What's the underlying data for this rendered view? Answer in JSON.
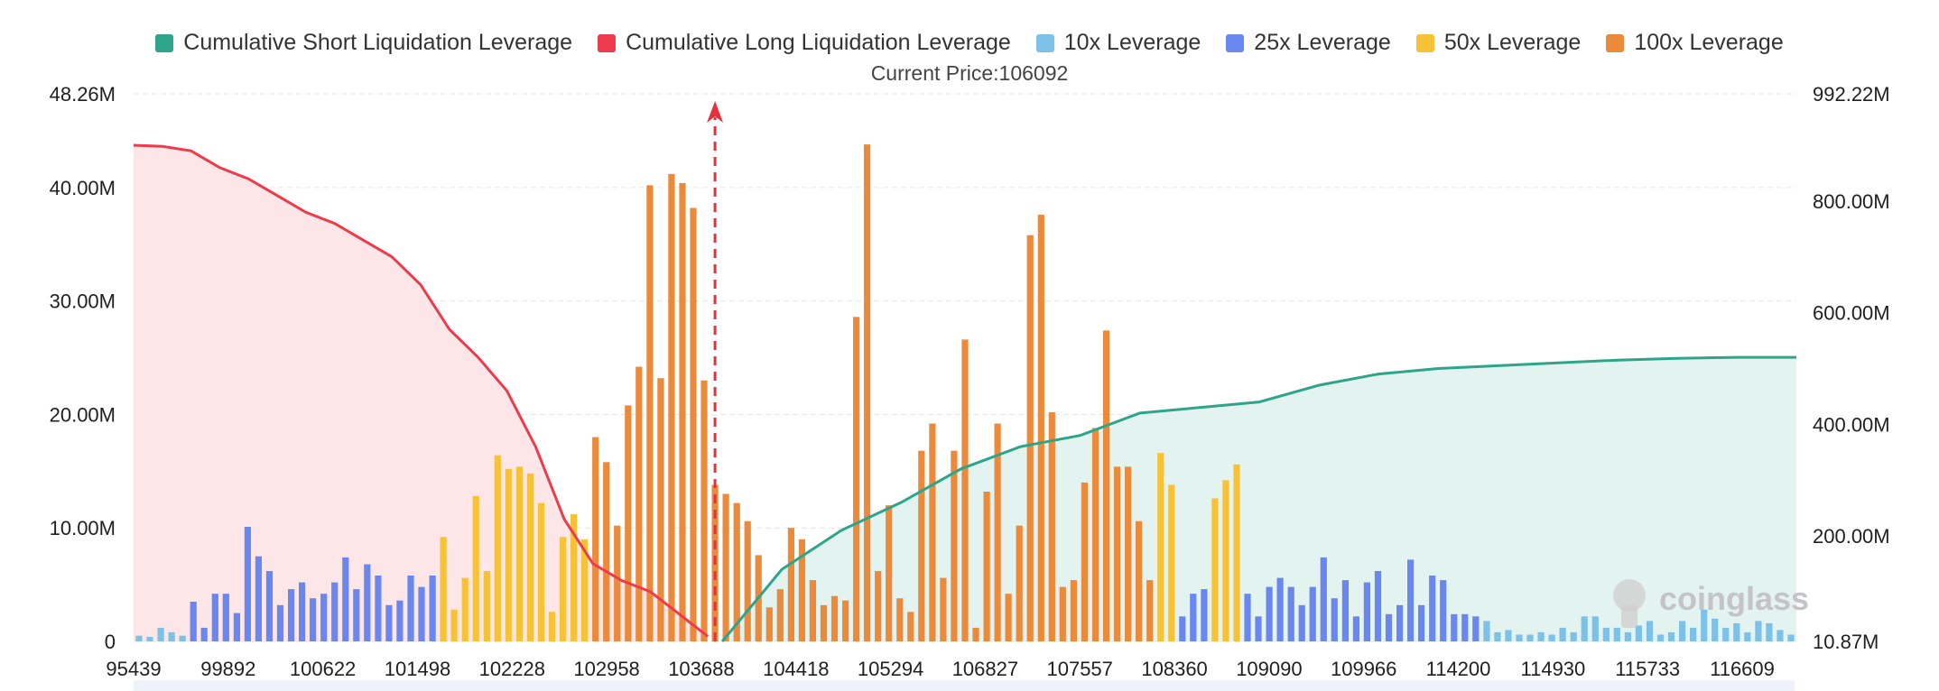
{
  "legend": {
    "items": [
      {
        "label": "Cumulative Short Liquidation Leverage",
        "color": "#2ea58a"
      },
      {
        "label": "Cumulative Long Liquidation Leverage",
        "color": "#ee3b4b"
      },
      {
        "label": "10x Leverage",
        "color": "#7ec1e8"
      },
      {
        "label": "25x Leverage",
        "color": "#6a87f0"
      },
      {
        "label": "50x Leverage",
        "color": "#f7c236"
      },
      {
        "label": "100x Leverage",
        "color": "#ec8a3c"
      }
    ]
  },
  "current_price_label": "Current Price:106092",
  "watermark": "coinglass",
  "colors": {
    "short_line": "#2ea58a",
    "short_fill": "#e3f3ef",
    "long_line": "#ee3b4b",
    "long_fill": "#fde6e8",
    "x10": "#7ec1e8",
    "x25": "#6a87f0",
    "x50": "#f7c236",
    "x100": "#ec8a3c",
    "marker": "#e5313c",
    "grid": "#e6e6e6"
  },
  "chart_data": {
    "type": "bar",
    "x_tick_labels": [
      "95439",
      "99892",
      "100622",
      "101498",
      "102228",
      "102958",
      "103688",
      "104418",
      "105294",
      "106827",
      "107557",
      "108360",
      "109090",
      "109966",
      "114200",
      "114930",
      "115733",
      "116609"
    ],
    "left_axis": {
      "ticks": [
        "0",
        "10.00M",
        "20.00M",
        "30.00M",
        "40.00M",
        "48.26M"
      ],
      "range": [
        0,
        48.26
      ],
      "unit": "M"
    },
    "right_axis": {
      "ticks": [
        "10.87M",
        "200.00M",
        "400.00M",
        "600.00M",
        "800.00M",
        "992.22M"
      ],
      "range": [
        10.87,
        992.22
      ],
      "unit": "M"
    },
    "current_price": 106092,
    "current_price_bar_index": 53,
    "bars": [
      {
        "t": 10,
        "v": 0.5
      },
      {
        "t": 10,
        "v": 0.4
      },
      {
        "t": 10,
        "v": 1.2
      },
      {
        "t": 10,
        "v": 0.8
      },
      {
        "t": 10,
        "v": 0.5
      },
      {
        "t": 25,
        "v": 3.5
      },
      {
        "t": 25,
        "v": 1.2
      },
      {
        "t": 25,
        "v": 4.2
      },
      {
        "t": 25,
        "v": 4.2
      },
      {
        "t": 25,
        "v": 2.5
      },
      {
        "t": 25,
        "v": 10.1
      },
      {
        "t": 25,
        "v": 7.5
      },
      {
        "t": 25,
        "v": 6.2
      },
      {
        "t": 25,
        "v": 3.2
      },
      {
        "t": 25,
        "v": 4.6
      },
      {
        "t": 25,
        "v": 5.2
      },
      {
        "t": 25,
        "v": 3.8
      },
      {
        "t": 25,
        "v": 4.2
      },
      {
        "t": 25,
        "v": 5.2
      },
      {
        "t": 25,
        "v": 7.4
      },
      {
        "t": 25,
        "v": 4.6
      },
      {
        "t": 25,
        "v": 6.8
      },
      {
        "t": 25,
        "v": 5.8
      },
      {
        "t": 25,
        "v": 3.2
      },
      {
        "t": 25,
        "v": 3.6
      },
      {
        "t": 25,
        "v": 5.8
      },
      {
        "t": 25,
        "v": 4.8
      },
      {
        "t": 25,
        "v": 5.8
      },
      {
        "t": 50,
        "v": 9.2
      },
      {
        "t": 50,
        "v": 2.8
      },
      {
        "t": 50,
        "v": 5.6
      },
      {
        "t": 50,
        "v": 12.8
      },
      {
        "t": 50,
        "v": 6.2
      },
      {
        "t": 50,
        "v": 16.4
      },
      {
        "t": 50,
        "v": 15.2
      },
      {
        "t": 50,
        "v": 15.4
      },
      {
        "t": 50,
        "v": 14.8
      },
      {
        "t": 50,
        "v": 12.2
      },
      {
        "t": 50,
        "v": 2.6
      },
      {
        "t": 50,
        "v": 9.2
      },
      {
        "t": 50,
        "v": 11.2
      },
      {
        "t": 50,
        "v": 9.0
      },
      {
        "t": 100,
        "v": 18.0
      },
      {
        "t": 100,
        "v": 15.8
      },
      {
        "t": 100,
        "v": 10.2
      },
      {
        "t": 100,
        "v": 20.8
      },
      {
        "t": 100,
        "v": 24.2
      },
      {
        "t": 100,
        "v": 40.2
      },
      {
        "t": 100,
        "v": 23.2
      },
      {
        "t": 100,
        "v": 41.2
      },
      {
        "t": 100,
        "v": 40.4
      },
      {
        "t": 100,
        "v": 38.2
      },
      {
        "t": 100,
        "v": 23.0
      },
      {
        "t": 100,
        "v": 13.8
      },
      {
        "t": 100,
        "v": 13.0
      },
      {
        "t": 100,
        "v": 12.2
      },
      {
        "t": 100,
        "v": 10.6
      },
      {
        "t": 100,
        "v": 7.6
      },
      {
        "t": 100,
        "v": 3.0
      },
      {
        "t": 100,
        "v": 4.6
      },
      {
        "t": 100,
        "v": 10.0
      },
      {
        "t": 100,
        "v": 9.0
      },
      {
        "t": 100,
        "v": 5.4
      },
      {
        "t": 100,
        "v": 3.2
      },
      {
        "t": 100,
        "v": 4.0
      },
      {
        "t": 100,
        "v": 3.6
      },
      {
        "t": 100,
        "v": 28.6
      },
      {
        "t": 100,
        "v": 43.8
      },
      {
        "t": 100,
        "v": 6.2
      },
      {
        "t": 100,
        "v": 12.0
      },
      {
        "t": 100,
        "v": 3.8
      },
      {
        "t": 100,
        "v": 2.6
      },
      {
        "t": 100,
        "v": 16.8
      },
      {
        "t": 100,
        "v": 19.2
      },
      {
        "t": 100,
        "v": 5.6
      },
      {
        "t": 100,
        "v": 16.8
      },
      {
        "t": 100,
        "v": 26.6
      },
      {
        "t": 100,
        "v": 1.2
      },
      {
        "t": 100,
        "v": 13.2
      },
      {
        "t": 100,
        "v": 19.2
      },
      {
        "t": 100,
        "v": 4.2
      },
      {
        "t": 100,
        "v": 10.2
      },
      {
        "t": 100,
        "v": 35.8
      },
      {
        "t": 100,
        "v": 37.6
      },
      {
        "t": 100,
        "v": 20.2
      },
      {
        "t": 100,
        "v": 4.8
      },
      {
        "t": 100,
        "v": 5.4
      },
      {
        "t": 100,
        "v": 14.0
      },
      {
        "t": 100,
        "v": 18.8
      },
      {
        "t": 100,
        "v": 27.4
      },
      {
        "t": 100,
        "v": 15.4
      },
      {
        "t": 100,
        "v": 15.4
      },
      {
        "t": 100,
        "v": 10.6
      },
      {
        "t": 100,
        "v": 5.4
      },
      {
        "t": 50,
        "v": 16.6
      },
      {
        "t": 50,
        "v": 13.8
      },
      {
        "t": 25,
        "v": 2.2
      },
      {
        "t": 25,
        "v": 4.2
      },
      {
        "t": 25,
        "v": 4.6
      },
      {
        "t": 50,
        "v": 12.6
      },
      {
        "t": 50,
        "v": 14.2
      },
      {
        "t": 50,
        "v": 15.6
      },
      {
        "t": 25,
        "v": 4.2
      },
      {
        "t": 25,
        "v": 2.2
      },
      {
        "t": 25,
        "v": 4.8
      },
      {
        "t": 25,
        "v": 5.6
      },
      {
        "t": 25,
        "v": 4.8
      },
      {
        "t": 25,
        "v": 3.2
      },
      {
        "t": 25,
        "v": 4.8
      },
      {
        "t": 25,
        "v": 7.4
      },
      {
        "t": 25,
        "v": 3.8
      },
      {
        "t": 25,
        "v": 5.4
      },
      {
        "t": 25,
        "v": 2.2
      },
      {
        "t": 25,
        "v": 5.2
      },
      {
        "t": 25,
        "v": 6.2
      },
      {
        "t": 25,
        "v": 2.4
      },
      {
        "t": 25,
        "v": 3.2
      },
      {
        "t": 25,
        "v": 7.2
      },
      {
        "t": 25,
        "v": 3.2
      },
      {
        "t": 25,
        "v": 5.8
      },
      {
        "t": 25,
        "v": 5.4
      },
      {
        "t": 25,
        "v": 2.4
      },
      {
        "t": 25,
        "v": 2.4
      },
      {
        "t": 25,
        "v": 2.2
      },
      {
        "t": 10,
        "v": 1.8
      },
      {
        "t": 10,
        "v": 0.8
      },
      {
        "t": 10,
        "v": 1.0
      },
      {
        "t": 10,
        "v": 0.6
      },
      {
        "t": 10,
        "v": 0.6
      },
      {
        "t": 10,
        "v": 0.8
      },
      {
        "t": 10,
        "v": 0.6
      },
      {
        "t": 10,
        "v": 1.2
      },
      {
        "t": 10,
        "v": 0.8
      },
      {
        "t": 10,
        "v": 2.2
      },
      {
        "t": 10,
        "v": 2.2
      },
      {
        "t": 10,
        "v": 1.2
      },
      {
        "t": 10,
        "v": 1.2
      },
      {
        "t": 10,
        "v": 0.8
      },
      {
        "t": 10,
        "v": 1.4
      },
      {
        "t": 10,
        "v": 1.8
      },
      {
        "t": 10,
        "v": 0.6
      },
      {
        "t": 10,
        "v": 0.8
      },
      {
        "t": 10,
        "v": 1.8
      },
      {
        "t": 10,
        "v": 1.2
      },
      {
        "t": 10,
        "v": 2.8
      },
      {
        "t": 10,
        "v": 2.0
      },
      {
        "t": 10,
        "v": 1.2
      },
      {
        "t": 10,
        "v": 1.6
      },
      {
        "t": 10,
        "v": 0.8
      },
      {
        "t": 10,
        "v": 1.8
      },
      {
        "t": 10,
        "v": 1.6
      },
      {
        "t": 10,
        "v": 1.0
      },
      {
        "t": 10,
        "v": 0.6
      }
    ],
    "long_cumulative": [
      900,
      898,
      890,
      860,
      840,
      810,
      780,
      760,
      730,
      700,
      650,
      570,
      520,
      460,
      360,
      230,
      150,
      120,
      100,
      60,
      20
    ],
    "short_cumulative": [
      10.87,
      140,
      210,
      260,
      320,
      360,
      380,
      420,
      430,
      440,
      470,
      490,
      500,
      505,
      510,
      515,
      518,
      520,
      520
    ]
  }
}
